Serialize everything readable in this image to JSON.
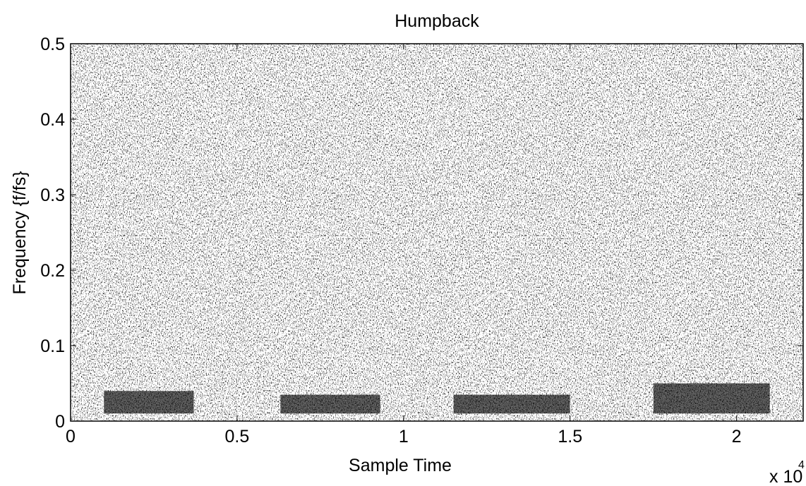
{
  "chart_data": {
    "type": "spectrogram",
    "title": "Humpback",
    "x_label": "Sample Time",
    "y_label": "Frequency {f/fs}",
    "x_multiplier_base": "x 10",
    "x_multiplier_exponent": "4",
    "xlim": [
      0,
      2.2
    ],
    "xticks": [
      0,
      0.5,
      1,
      1.5,
      2
    ],
    "ylim": [
      0,
      0.5
    ],
    "yticks": [
      0,
      0.1,
      0.2,
      0.3,
      0.4,
      0.5
    ],
    "color": "#000000",
    "calls": [
      {
        "x": [
          0.1,
          0.37
        ],
        "y": [
          0.01,
          0.04
        ]
      },
      {
        "x": [
          0.63,
          0.93
        ],
        "y": [
          0.01,
          0.035
        ]
      },
      {
        "x": [
          1.15,
          1.5
        ],
        "y": [
          0.01,
          0.035
        ]
      },
      {
        "x": [
          1.75,
          2.1
        ],
        "y": [
          0.01,
          0.05
        ]
      }
    ]
  }
}
